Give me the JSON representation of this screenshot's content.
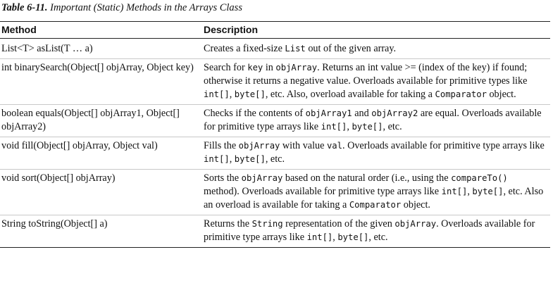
{
  "caption": {
    "label": "Table 6-11.",
    "title": "Important (Static) Methods in the Arrays Class"
  },
  "table": {
    "headers": [
      "Method",
      "Description"
    ],
    "rows": [
      {
        "method": "List<T> asList(T … a)",
        "description": [
          {
            "t": "Creates a fixed-size "
          },
          {
            "c": "List"
          },
          {
            "t": " out of the given array."
          }
        ]
      },
      {
        "method": "int binarySearch(Object[] objArray, Object key)",
        "description": [
          {
            "t": "Search for "
          },
          {
            "c": "key"
          },
          {
            "t": " in "
          },
          {
            "c": "objArray"
          },
          {
            "t": ". Returns an int value >= (index of the key) if found; otherwise it returns a negative value. Overloads available for primitive types like "
          },
          {
            "c": "int[]"
          },
          {
            "t": ", "
          },
          {
            "c": "byte[]"
          },
          {
            "t": ", etc. Also, overload available for taking a "
          },
          {
            "c": "Comparator"
          },
          {
            "t": " object."
          }
        ]
      },
      {
        "method": "boolean equals(Object[] objArray1, Object[] objArray2)",
        "description": [
          {
            "t": "Checks if the contents of "
          },
          {
            "c": "objArray1"
          },
          {
            "t": " and "
          },
          {
            "c": "objArray2"
          },
          {
            "t": " are equal. Overloads available for primitive type arrays like "
          },
          {
            "c": "int[]"
          },
          {
            "t": ", "
          },
          {
            "c": "byte[]"
          },
          {
            "t": ", etc."
          }
        ]
      },
      {
        "method": "void fill(Object[] objArray, Object val)",
        "description": [
          {
            "t": "Fills the "
          },
          {
            "c": "objArray"
          },
          {
            "t": " with value "
          },
          {
            "c": "val"
          },
          {
            "t": ". Overloads available for primitive type arrays like "
          },
          {
            "c": "int[]"
          },
          {
            "t": ", "
          },
          {
            "c": "byte[]"
          },
          {
            "t": ", etc."
          }
        ]
      },
      {
        "method": "void sort(Object[] objArray)",
        "description": [
          {
            "t": "Sorts the "
          },
          {
            "c": "objArray"
          },
          {
            "t": " based on the natural order (i.e., using the "
          },
          {
            "c": "compareTo()"
          },
          {
            "t": " method). Overloads available for primitive type arrays like "
          },
          {
            "c": "int[]"
          },
          {
            "t": ", "
          },
          {
            "c": "byte[]"
          },
          {
            "t": ", etc. Also an overload is available for taking a "
          },
          {
            "c": "Comparator"
          },
          {
            "t": " object."
          }
        ]
      },
      {
        "method": "String toString(Object[] a)",
        "description": [
          {
            "t": "Returns the "
          },
          {
            "c": "String"
          },
          {
            "t": " representation of the given "
          },
          {
            "c": "objArray"
          },
          {
            "t": ". Overloads available for primitive type arrays like "
          },
          {
            "c": "int[]"
          },
          {
            "t": ", "
          },
          {
            "c": "byte[]"
          },
          {
            "t": ", etc."
          }
        ]
      }
    ]
  }
}
